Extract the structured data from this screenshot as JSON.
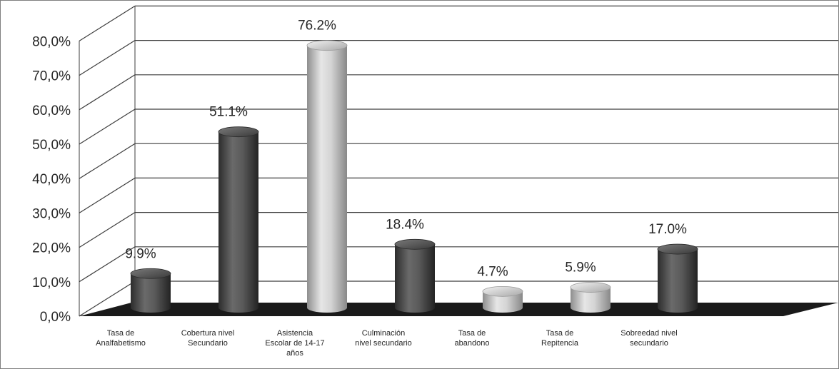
{
  "chart_data": {
    "type": "bar",
    "style": "3d-cylinder",
    "categories": [
      [
        "Tasa de",
        "Analfabetismo"
      ],
      [
        "Cobertura nivel",
        "Secundario"
      ],
      [
        "Asistencia",
        "Escolar de 14-17",
        "años"
      ],
      [
        "Culminación",
        "nivel secundario"
      ],
      [
        "Tasa de",
        "abandono"
      ],
      [
        "Tasa de",
        "Repitencia"
      ],
      [
        "Sobreedad nivel",
        "secundario"
      ]
    ],
    "values": [
      9.9,
      51.1,
      76.2,
      18.4,
      4.7,
      5.9,
      17.0
    ],
    "data_labels": [
      "9.9%",
      "51.1%",
      "76.2%",
      "18.4%",
      "4.7%",
      "5.9%",
      "17.0%"
    ],
    "bar_colors": [
      "dark",
      "dark",
      "light",
      "dark",
      "light",
      "light",
      "dark"
    ],
    "colors": {
      "dark": "#4a4a4a",
      "light": "#c4c4c4",
      "floor": "#1a1a1a",
      "grid": "#3c3c3c"
    },
    "yticks": [
      "0,0%",
      "10,0%",
      "20,0%",
      "30,0%",
      "40,0%",
      "50,0%",
      "60,0%",
      "70,0%",
      "80,0%"
    ],
    "ylim": [
      0,
      80
    ],
    "grid": true,
    "legend": "none"
  }
}
